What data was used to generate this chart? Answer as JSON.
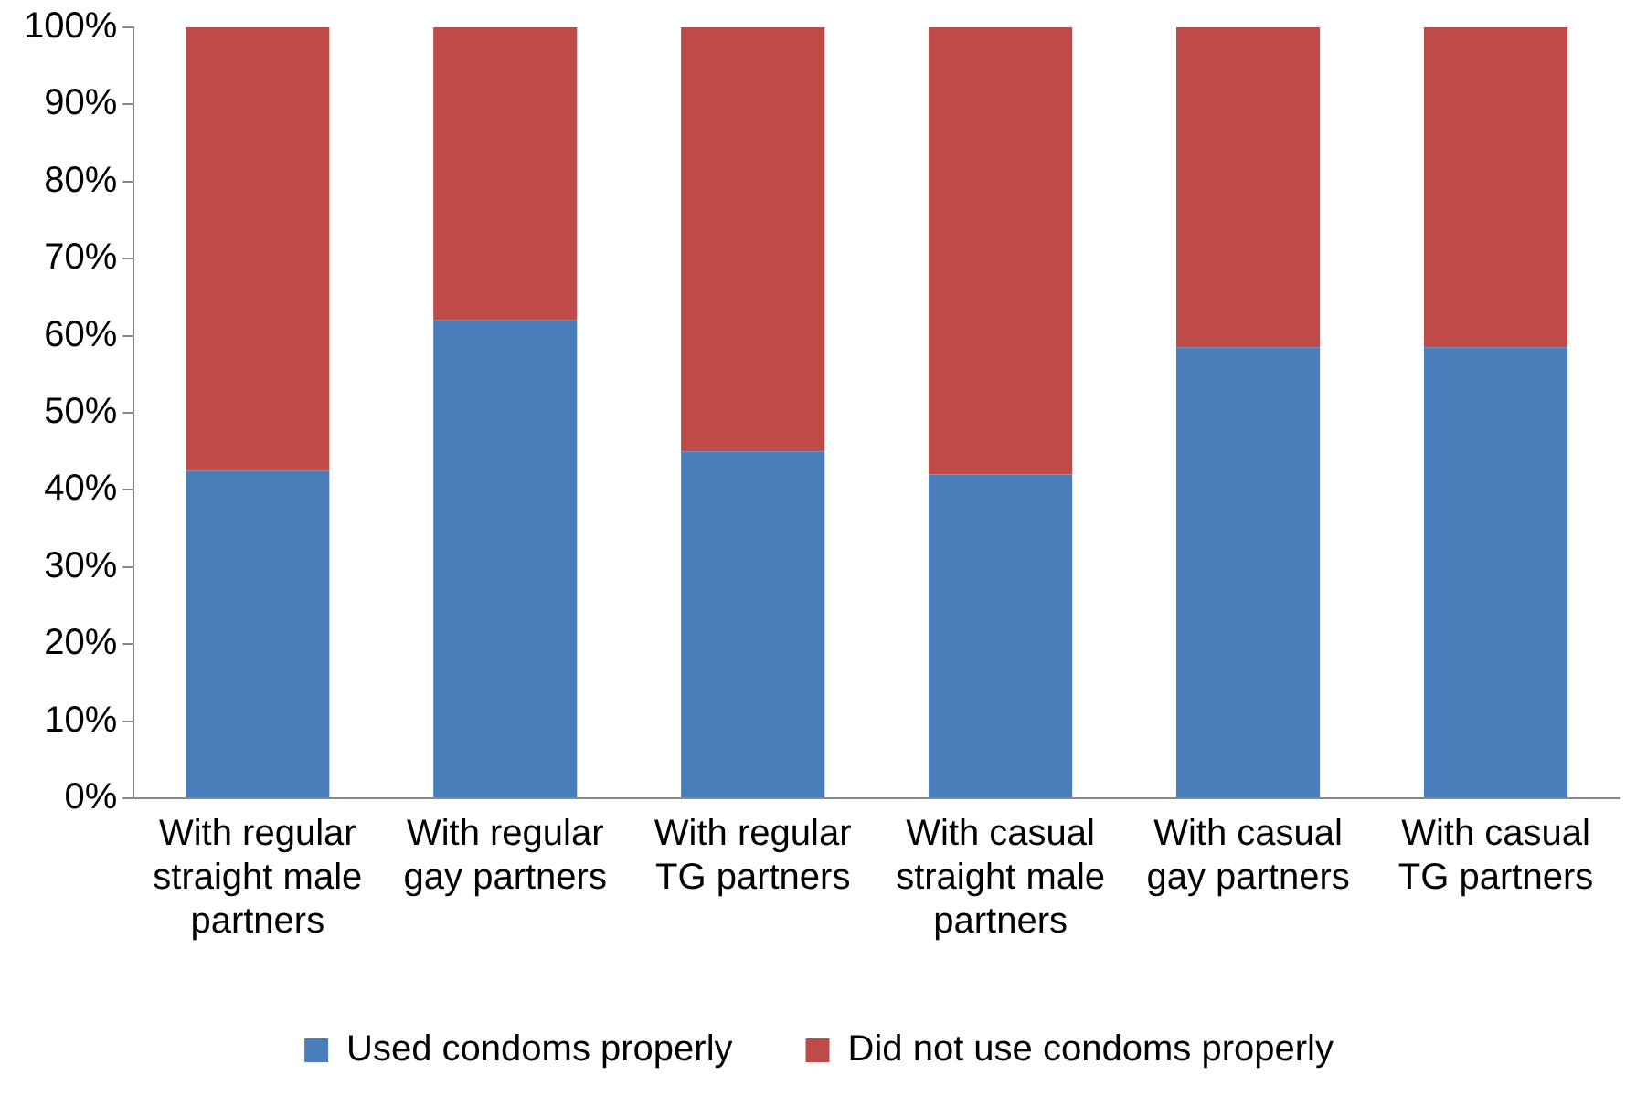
{
  "chart_data": {
    "type": "bar",
    "stacked": true,
    "categories": [
      "With regular straight male partners",
      "With regular gay partners",
      "With regular TG partners",
      "With casual straight male partners",
      "With casual gay partners",
      "With casual TG partners"
    ],
    "series": [
      {
        "name": "Used condoms properly",
        "color": "#4a7ebb",
        "values": [
          42.5,
          62,
          45,
          42,
          58.5,
          58.5
        ]
      },
      {
        "name": "Did not use condoms properly",
        "color": "#be4b48",
        "values": [
          57.5,
          38,
          55,
          58,
          41.5,
          41.5
        ]
      }
    ],
    "ylim": [
      0,
      100
    ],
    "yticks": [
      {
        "value": 0,
        "label": "0%"
      },
      {
        "value": 10,
        "label": "10%"
      },
      {
        "value": 20,
        "label": "20%"
      },
      {
        "value": 30,
        "label": "30%"
      },
      {
        "value": 40,
        "label": "40%"
      },
      {
        "value": 50,
        "label": "50%"
      },
      {
        "value": 60,
        "label": "60%"
      },
      {
        "value": 70,
        "label": "70%"
      },
      {
        "value": 80,
        "label": "80%"
      },
      {
        "value": 90,
        "label": "90%"
      },
      {
        "value": 100,
        "label": "100%"
      }
    ],
    "grid": false,
    "legend": "bottom"
  }
}
